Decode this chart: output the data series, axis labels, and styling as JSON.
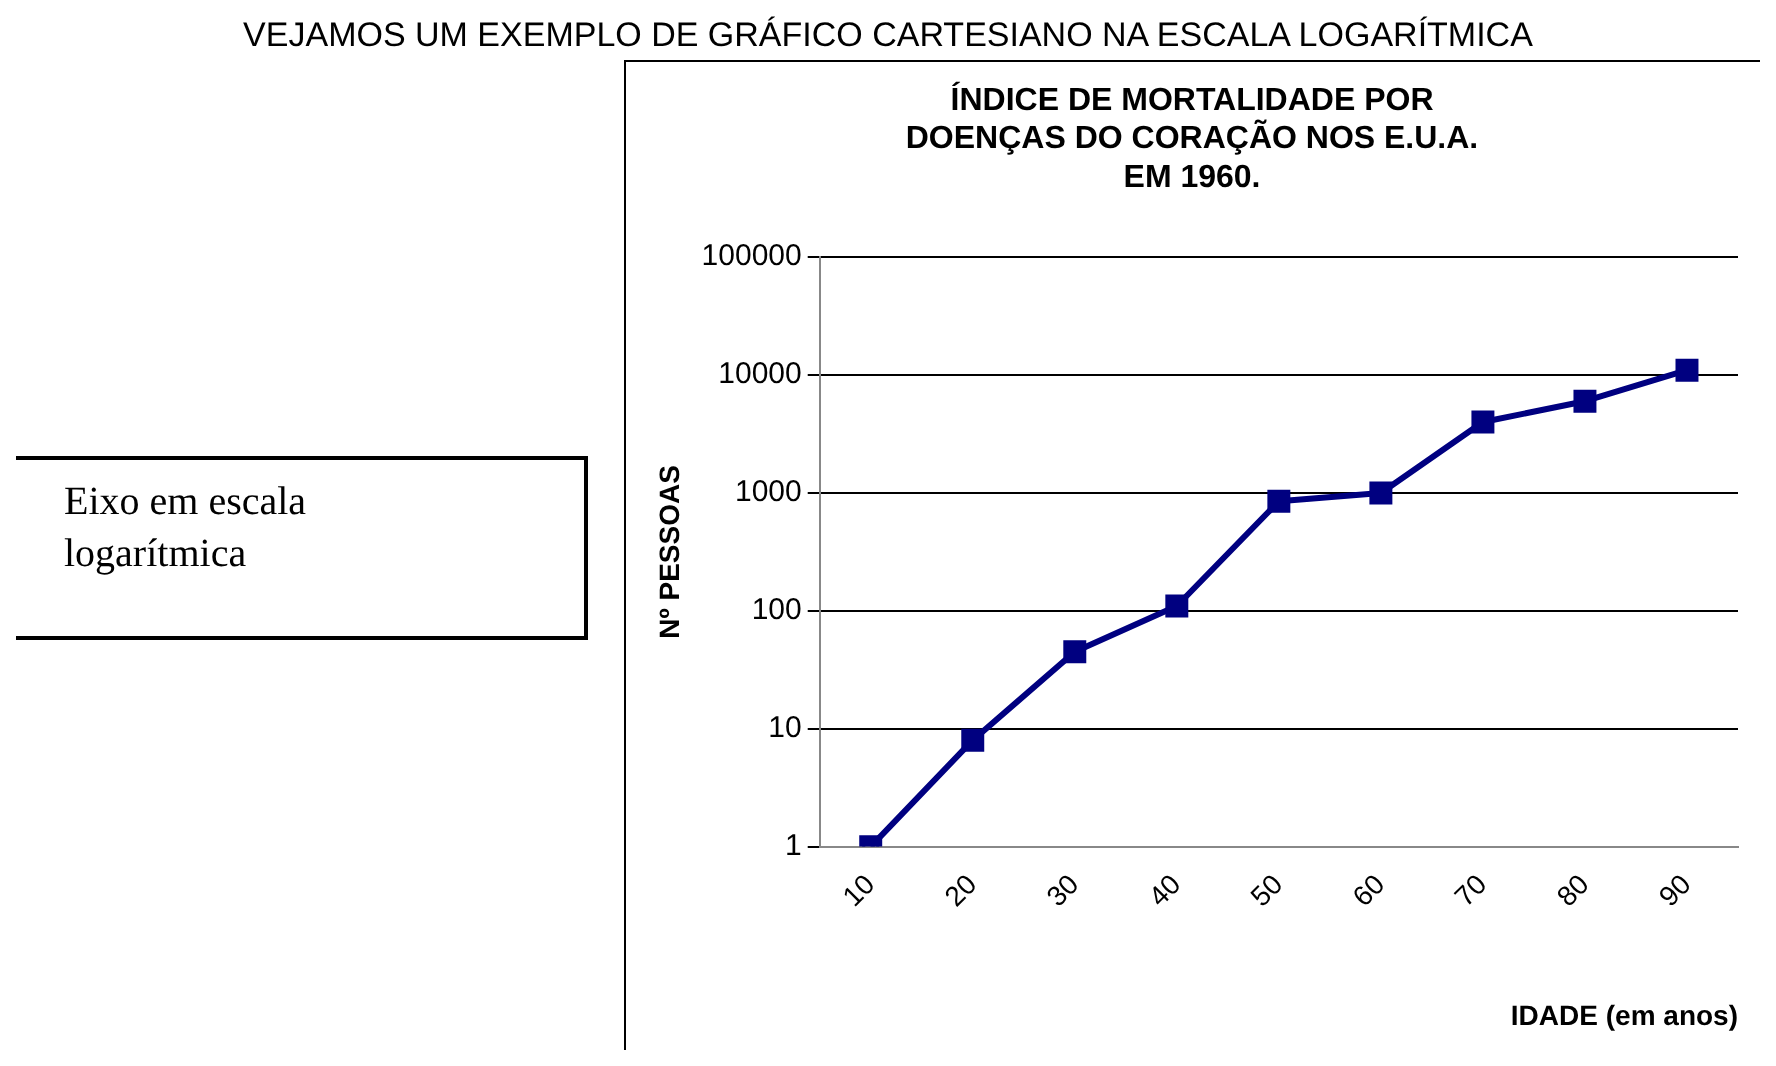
{
  "chart_data": {
    "type": "line",
    "title": "ÍNDICE DE MORTALIDADE POR\nDOENÇAS DO CORAÇÃO NOS E.U.A.\nEM 1960.",
    "xlabel": "IDADE (em anos)",
    "ylabel": "Nº PESSOAS",
    "categories": [
      "10",
      "20",
      "30",
      "40",
      "50",
      "60",
      "70",
      "80",
      "90"
    ],
    "series": [
      {
        "color": "#000080",
        "values": [
          1,
          8,
          45,
          110,
          850,
          1000,
          4000,
          6000,
          11000
        ]
      }
    ],
    "ylim": [
      1,
      100000
    ],
    "yticks": [
      1,
      10,
      100,
      1000,
      10000,
      100000
    ],
    "log": "y",
    "grid": "y",
    "marker": "square",
    "line_style": "solid",
    "legend": false,
    "annotations": [
      "VEJAMOS UM EXEMPLO DE GRÁFICO CARTESIANO NA ESCALA LOGARÍTMICA",
      "Eixo em escala logarítmica"
    ]
  }
}
